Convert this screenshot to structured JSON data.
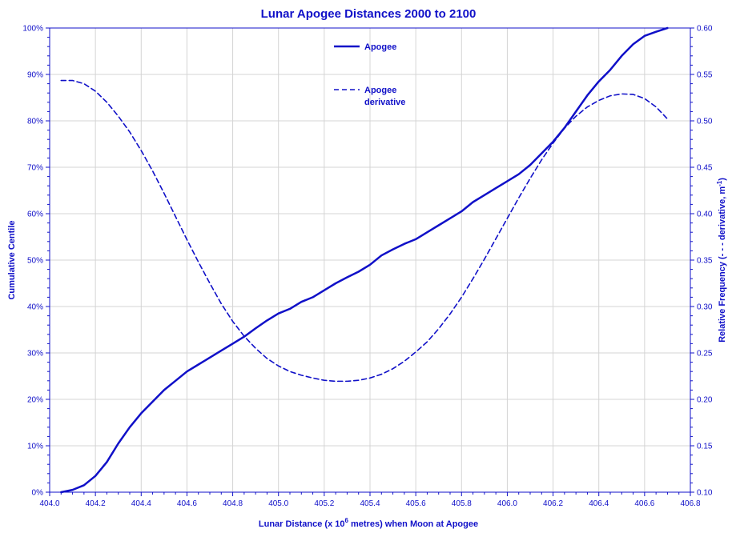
{
  "chart_data": {
    "type": "line",
    "title": "Lunar Apogee Distances 2000 to 2100",
    "xlabel": {
      "before_sup": "Lunar Distance (x 10",
      "sup": "6",
      "after_sup": " metres) when Moon at Apogee"
    },
    "ylabel_left": "Cumulative Centile",
    "ylabel_right": {
      "before_sup": "Relative Frequency (- - - derivative, m",
      "sup": "-1",
      "after_sup": ")"
    },
    "xlim": [
      404.0,
      406.8
    ],
    "ylim_left": [
      0,
      100
    ],
    "ylim_right": [
      0.1,
      0.6
    ],
    "grid": true,
    "legend_position": "top-center",
    "x_ticks": [
      "404.0",
      "404.2",
      "404.4",
      "404.6",
      "404.8",
      "405.0",
      "405.2",
      "405.4",
      "405.6",
      "405.8",
      "406.0",
      "406.2",
      "406.4",
      "406.6",
      "406.8"
    ],
    "y_left_ticks": [
      "0%",
      "10%",
      "20%",
      "30%",
      "40%",
      "50%",
      "60%",
      "70%",
      "80%",
      "90%",
      "100%"
    ],
    "y_right_ticks": [
      "0.10",
      "0.15",
      "0.20",
      "0.25",
      "0.30",
      "0.35",
      "0.40",
      "0.45",
      "0.50",
      "0.55",
      "0.60"
    ],
    "series": [
      {
        "name": "Apogee",
        "axis": "left",
        "style": "solid",
        "color": "#1010c8",
        "points": [
          [
            404.05,
            0
          ],
          [
            404.1,
            0.5
          ],
          [
            404.15,
            1.5
          ],
          [
            404.2,
            3.5
          ],
          [
            404.25,
            6.5
          ],
          [
            404.3,
            10.5
          ],
          [
            404.35,
            14
          ],
          [
            404.4,
            17
          ],
          [
            404.45,
            19.5
          ],
          [
            404.5,
            22
          ],
          [
            404.55,
            24
          ],
          [
            404.6,
            26
          ],
          [
            404.65,
            27.5
          ],
          [
            404.7,
            29
          ],
          [
            404.75,
            30.5
          ],
          [
            404.8,
            32
          ],
          [
            404.85,
            33.5
          ],
          [
            404.9,
            35.3
          ],
          [
            404.95,
            37
          ],
          [
            405.0,
            38.5
          ],
          [
            405.05,
            39.5
          ],
          [
            405.1,
            41
          ],
          [
            405.15,
            42
          ],
          [
            405.2,
            43.5
          ],
          [
            405.25,
            45
          ],
          [
            405.3,
            46.3
          ],
          [
            405.35,
            47.5
          ],
          [
            405.4,
            49
          ],
          [
            405.45,
            51
          ],
          [
            405.5,
            52.3
          ],
          [
            405.55,
            53.5
          ],
          [
            405.6,
            54.5
          ],
          [
            405.65,
            56
          ],
          [
            405.7,
            57.5
          ],
          [
            405.75,
            59
          ],
          [
            405.8,
            60.5
          ],
          [
            405.85,
            62.5
          ],
          [
            405.9,
            64
          ],
          [
            405.95,
            65.5
          ],
          [
            406.0,
            67
          ],
          [
            406.05,
            68.5
          ],
          [
            406.1,
            70.5
          ],
          [
            406.15,
            73
          ],
          [
            406.2,
            75.5
          ],
          [
            406.25,
            78.5
          ],
          [
            406.3,
            82
          ],
          [
            406.35,
            85.5
          ],
          [
            406.4,
            88.5
          ],
          [
            406.45,
            91
          ],
          [
            406.5,
            94
          ],
          [
            406.55,
            96.5
          ],
          [
            406.6,
            98.3
          ],
          [
            406.65,
            99.2
          ],
          [
            406.7,
            100
          ]
        ]
      },
      {
        "name": "Apogee derivative",
        "legend_lines": [
          "Apogee",
          "derivative"
        ],
        "axis": "right",
        "style": "dashed",
        "color": "#1010c8",
        "points": [
          [
            404.05,
            0.5435
          ],
          [
            404.1,
            0.5435
          ],
          [
            404.15,
            0.54
          ],
          [
            404.2,
            0.532
          ],
          [
            404.25,
            0.52
          ],
          [
            404.3,
            0.505
          ],
          [
            404.35,
            0.488
          ],
          [
            404.4,
            0.468
          ],
          [
            404.45,
            0.446
          ],
          [
            404.5,
            0.422
          ],
          [
            404.55,
            0.397
          ],
          [
            404.6,
            0.372
          ],
          [
            404.65,
            0.348
          ],
          [
            404.7,
            0.325
          ],
          [
            404.75,
            0.303
          ],
          [
            404.8,
            0.284
          ],
          [
            404.85,
            0.268
          ],
          [
            404.9,
            0.255
          ],
          [
            404.95,
            0.244
          ],
          [
            405.0,
            0.236
          ],
          [
            405.05,
            0.23
          ],
          [
            405.1,
            0.226
          ],
          [
            405.15,
            0.223
          ],
          [
            405.2,
            0.2205
          ],
          [
            405.25,
            0.2195
          ],
          [
            405.3,
            0.2195
          ],
          [
            405.35,
            0.2205
          ],
          [
            405.4,
            0.223
          ],
          [
            405.45,
            0.227
          ],
          [
            405.5,
            0.233
          ],
          [
            405.55,
            0.241
          ],
          [
            405.6,
            0.251
          ],
          [
            405.65,
            0.262
          ],
          [
            405.7,
            0.276
          ],
          [
            405.75,
            0.292
          ],
          [
            405.8,
            0.31
          ],
          [
            405.85,
            0.33
          ],
          [
            405.9,
            0.351
          ],
          [
            405.95,
            0.373
          ],
          [
            406.0,
            0.395
          ],
          [
            406.05,
            0.417
          ],
          [
            406.1,
            0.438
          ],
          [
            406.15,
            0.458
          ],
          [
            406.2,
            0.476
          ],
          [
            406.25,
            0.492
          ],
          [
            406.3,
            0.505
          ],
          [
            406.35,
            0.515
          ],
          [
            406.4,
            0.522
          ],
          [
            406.45,
            0.527
          ],
          [
            406.5,
            0.529
          ],
          [
            406.55,
            0.5285
          ],
          [
            406.6,
            0.524
          ],
          [
            406.65,
            0.515
          ],
          [
            406.7,
            0.502
          ]
        ]
      }
    ]
  }
}
